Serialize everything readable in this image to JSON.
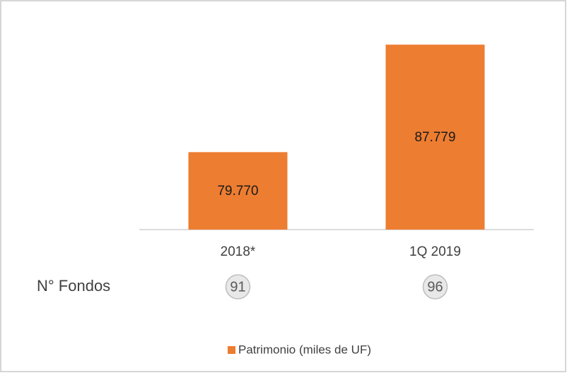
{
  "chart_data": {
    "type": "bar",
    "categories": [
      "2018*",
      "1Q 2019"
    ],
    "series": [
      {
        "name": "Patrimonio (miles de UF)",
        "color": "#ED7D31",
        "values": [
          79770,
          87779
        ],
        "value_labels": [
          "79.770",
          "87.779"
        ]
      }
    ],
    "ylim": [
      74000,
      90000
    ],
    "annotation_label": "N° Fondos",
    "fund_counts": [
      91,
      96
    ],
    "legend": "bottom"
  }
}
